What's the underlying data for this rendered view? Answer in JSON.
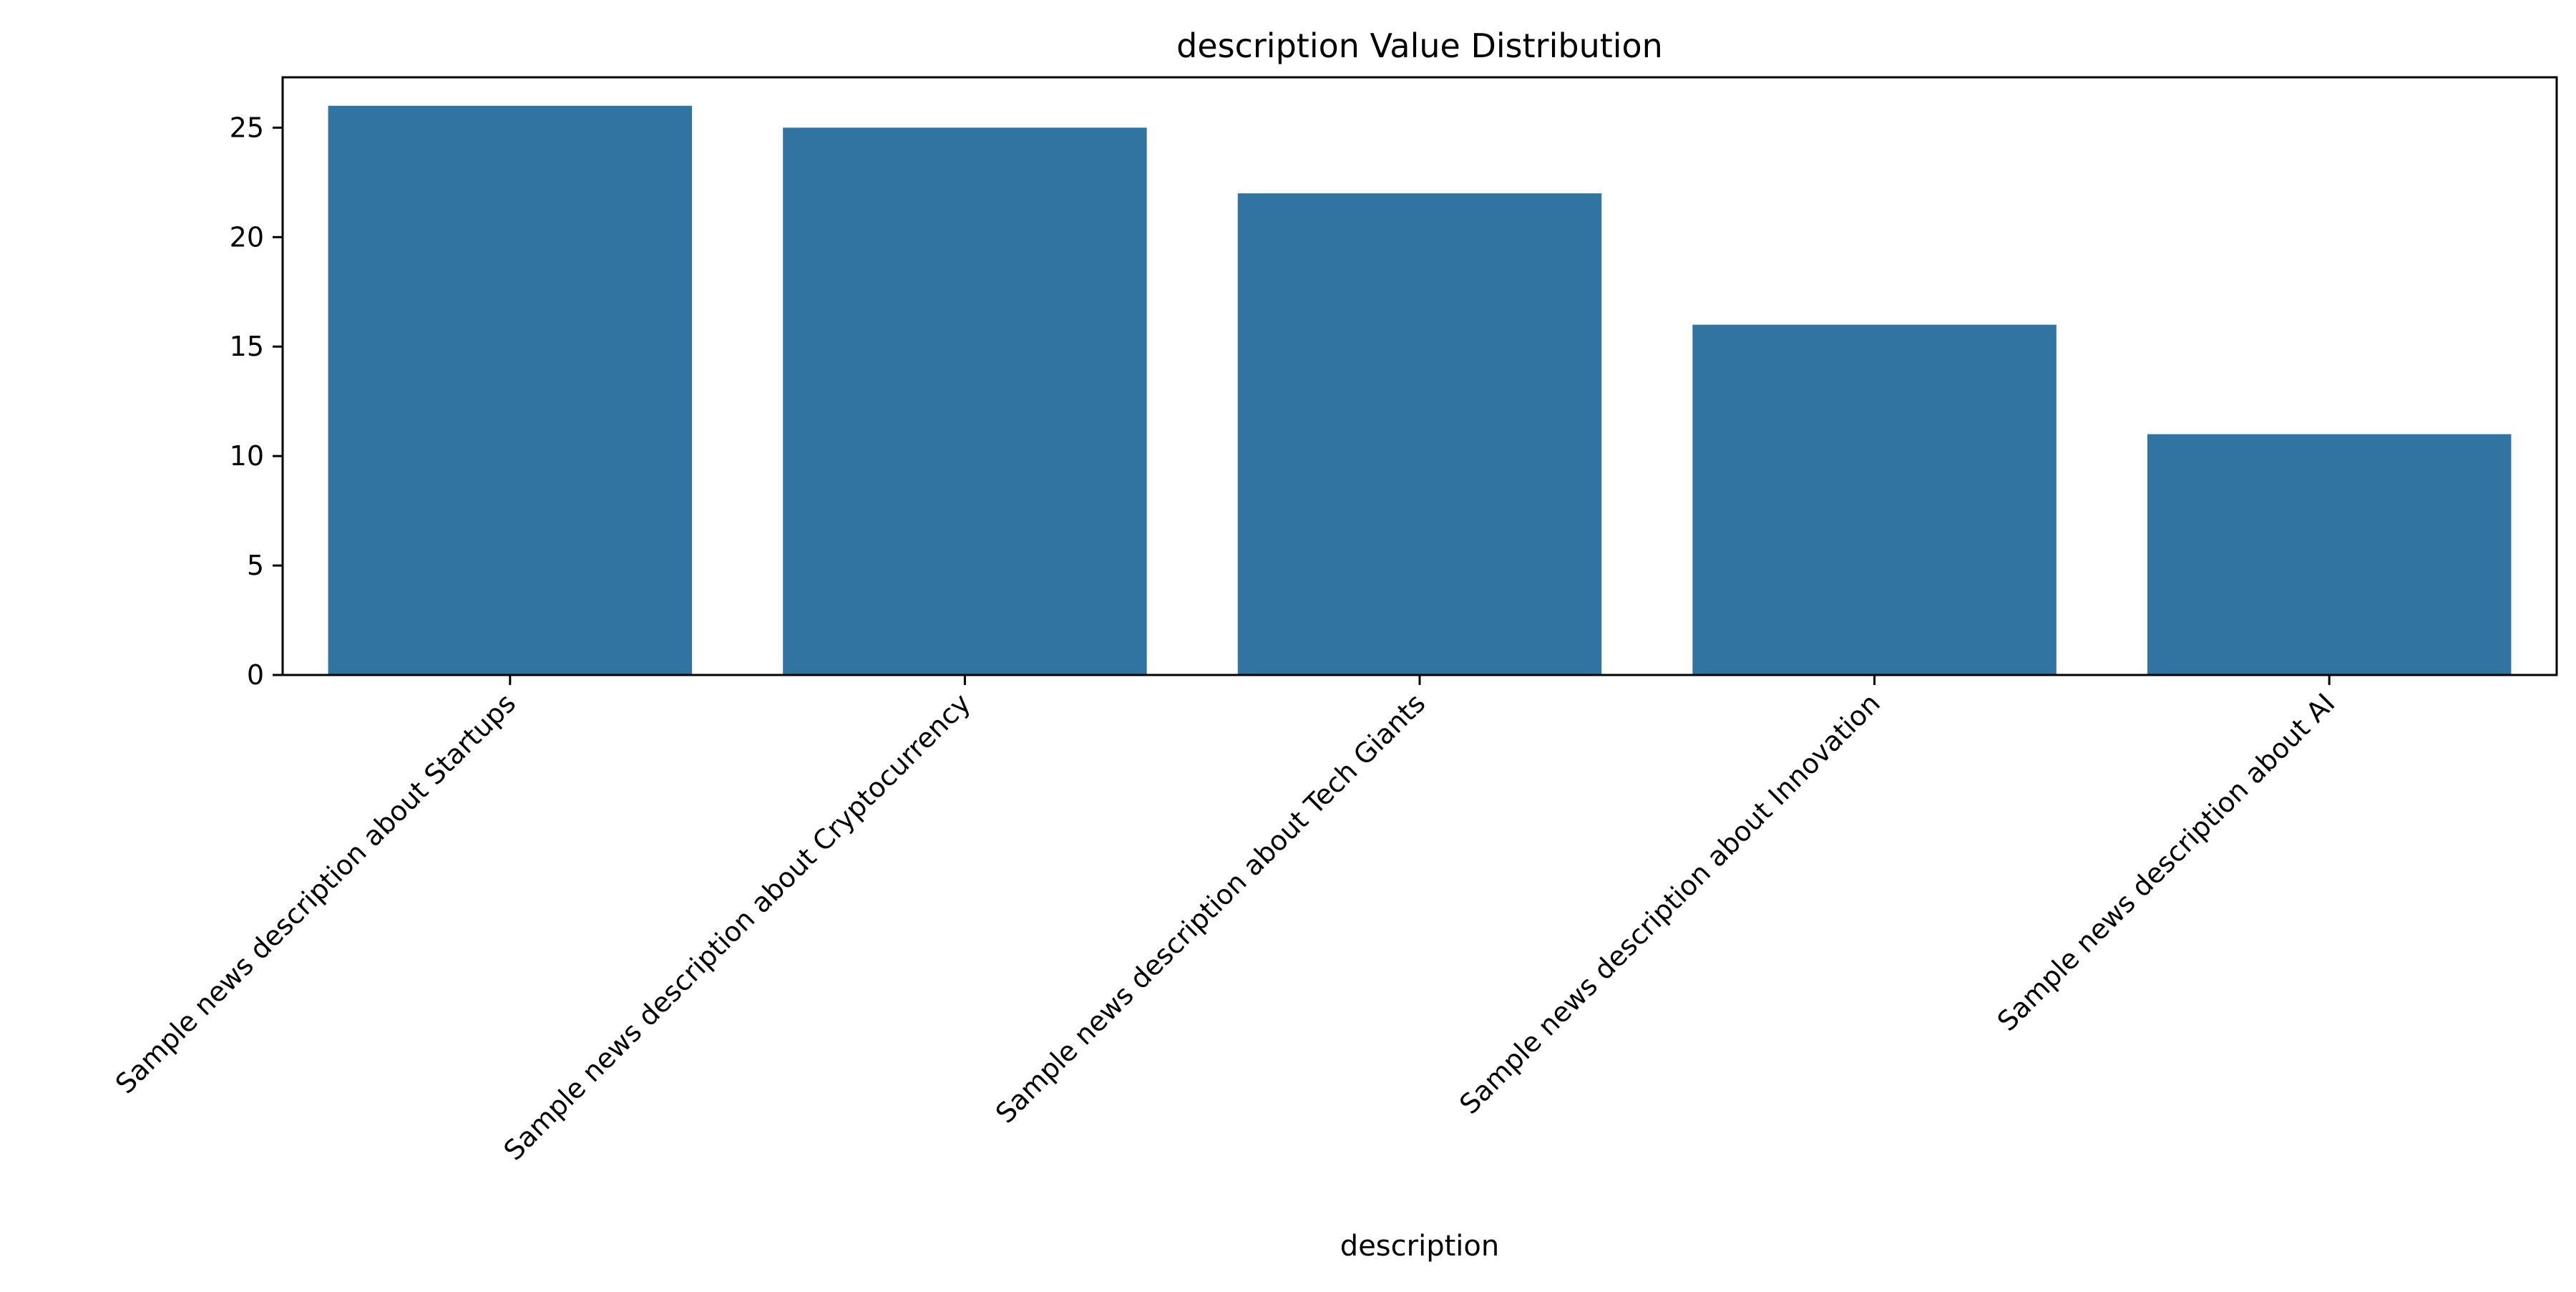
{
  "chart_data": {
    "type": "bar",
    "title": "description Value Distribution",
    "xlabel": "description",
    "ylabel": "",
    "categories": [
      "Sample news description about Startups",
      "Sample news description about Cryptocurrency",
      "Sample news description about Tech Giants",
      "Sample news description about Innovation",
      "Sample news description about AI"
    ],
    "values": [
      26,
      25,
      22,
      16,
      11
    ],
    "ylim": [
      0,
      27.3
    ],
    "yticks": [
      0,
      5,
      10,
      15,
      20,
      25
    ],
    "bar_color": "#3274a1",
    "grid": false,
    "legend": "none"
  }
}
